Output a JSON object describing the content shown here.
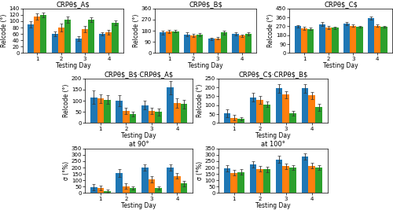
{
  "chart_data": [
    {
      "type": "bar",
      "title": "CRPθ$_A$",
      "xlabel": "Testing Day",
      "ylabel": "Relcode (°)",
      "categories": [
        "1",
        "2",
        "3",
        "4"
      ],
      "series": [
        {
          "values": [
            90,
            60,
            45,
            60
          ],
          "errors": [
            10,
            8,
            8,
            5
          ]
        },
        {
          "values": [
            115,
            80,
            75,
            65
          ],
          "errors": [
            10,
            12,
            10,
            8
          ]
        },
        {
          "values": [
            120,
            105,
            105,
            95
          ],
          "errors": [
            8,
            10,
            8,
            8
          ]
        }
      ],
      "ylim": [
        0,
        140
      ],
      "yticks": [
        0,
        20,
        40,
        60,
        80,
        100,
        120,
        140
      ]
    },
    {
      "type": "bar",
      "title": "CRPθ$_B$",
      "xlabel": "Testing Day",
      "ylabel": "Relcode (°)",
      "categories": [
        "1",
        "2",
        "3",
        "4"
      ],
      "series": [
        {
          "values": [
            165,
            150,
            115,
            155
          ],
          "errors": [
            15,
            15,
            10,
            10
          ]
        },
        {
          "values": [
            175,
            145,
            120,
            140
          ],
          "errors": [
            12,
            12,
            12,
            10
          ]
        },
        {
          "values": [
            175,
            150,
            165,
            155
          ],
          "errors": [
            10,
            12,
            15,
            12
          ]
        }
      ],
      "ylim": [
        0,
        360
      ],
      "yticks": [
        0,
        90,
        180,
        270,
        360
      ]
    },
    {
      "type": "bar",
      "title": "CRPθ$_C$",
      "xlabel": "Testing Day",
      "ylabel": "Relcode (°)",
      "categories": [
        "1",
        "2",
        "3",
        "4"
      ],
      "series": [
        {
          "values": [
            270,
            290,
            300,
            350
          ],
          "errors": [
            15,
            20,
            15,
            15
          ]
        },
        {
          "values": [
            250,
            260,
            275,
            275
          ],
          "errors": [
            15,
            15,
            12,
            12
          ]
        },
        {
          "values": [
            245,
            255,
            265,
            265
          ],
          "errors": [
            12,
            12,
            10,
            10
          ]
        }
      ],
      "ylim": [
        0,
        450
      ],
      "yticks": [
        0,
        90,
        180,
        270,
        360,
        450
      ]
    },
    {
      "type": "bar",
      "title": "CRPθ$_B$·CRPθ$_A$",
      "xlabel": "Testing Day",
      "ylabel": "Relcode (°)",
      "categories": [
        "1",
        "2",
        "3",
        "4"
      ],
      "series": [
        {
          "values": [
            115,
            100,
            80,
            160
          ],
          "errors": [
            30,
            25,
            20,
            30
          ]
        },
        {
          "values": [
            110,
            55,
            55,
            90
          ],
          "errors": [
            20,
            15,
            15,
            20
          ]
        },
        {
          "values": [
            105,
            40,
            50,
            85
          ],
          "errors": [
            20,
            10,
            15,
            20
          ]
        }
      ],
      "ylim": [
        0,
        200
      ],
      "yticks": [
        0,
        50,
        100,
        150,
        200
      ]
    },
    {
      "type": "bar",
      "title": "CRPθ$_C$·CRPθ$_B$",
      "xlabel": "Testing Day",
      "ylabel": "Relcode (°)",
      "categories": [
        "1",
        "2",
        "3",
        "4"
      ],
      "series": [
        {
          "values": [
            55,
            145,
            195,
            195
          ],
          "errors": [
            20,
            25,
            25,
            25
          ]
        },
        {
          "values": [
            30,
            130,
            160,
            155
          ],
          "errors": [
            15,
            20,
            20,
            20
          ]
        },
        {
          "values": [
            25,
            105,
            55,
            90
          ],
          "errors": [
            10,
            15,
            15,
            20
          ]
        }
      ],
      "ylim": [
        0,
        250
      ],
      "yticks": [
        0,
        50,
        100,
        150,
        200,
        250
      ]
    },
    {
      "type": "bar",
      "title": "at 90°",
      "xlabel": "Testing Day",
      "ylabel": "σ (°%)",
      "categories": [
        "1",
        "2",
        "3",
        "4"
      ],
      "series": [
        {
          "values": [
            45,
            155,
            200,
            200
          ],
          "errors": [
            25,
            30,
            25,
            25
          ]
        },
        {
          "values": [
            40,
            55,
            110,
            135
          ],
          "errors": [
            20,
            20,
            25,
            20
          ]
        },
        {
          "values": [
            15,
            40,
            40,
            75
          ],
          "errors": [
            10,
            15,
            15,
            20
          ]
        }
      ],
      "ylim": [
        0,
        350
      ],
      "yticks": [
        0,
        50,
        100,
        150,
        200,
        250,
        300,
        350
      ]
    },
    {
      "type": "bar",
      "title": "at 100°",
      "xlabel": "Testing Day",
      "ylabel": "σ (°%)",
      "categories": [
        "1",
        "2",
        "3",
        "4"
      ],
      "series": [
        {
          "values": [
            195,
            225,
            265,
            285
          ],
          "errors": [
            25,
            25,
            25,
            25
          ]
        },
        {
          "values": [
            160,
            190,
            210,
            215
          ],
          "errors": [
            20,
            20,
            20,
            20
          ]
        },
        {
          "values": [
            165,
            185,
            200,
            200
          ],
          "errors": [
            20,
            20,
            20,
            20
          ]
        }
      ],
      "ylim": [
        0,
        350
      ],
      "yticks": [
        0,
        50,
        100,
        150,
        200,
        250,
        300,
        350
      ]
    }
  ]
}
